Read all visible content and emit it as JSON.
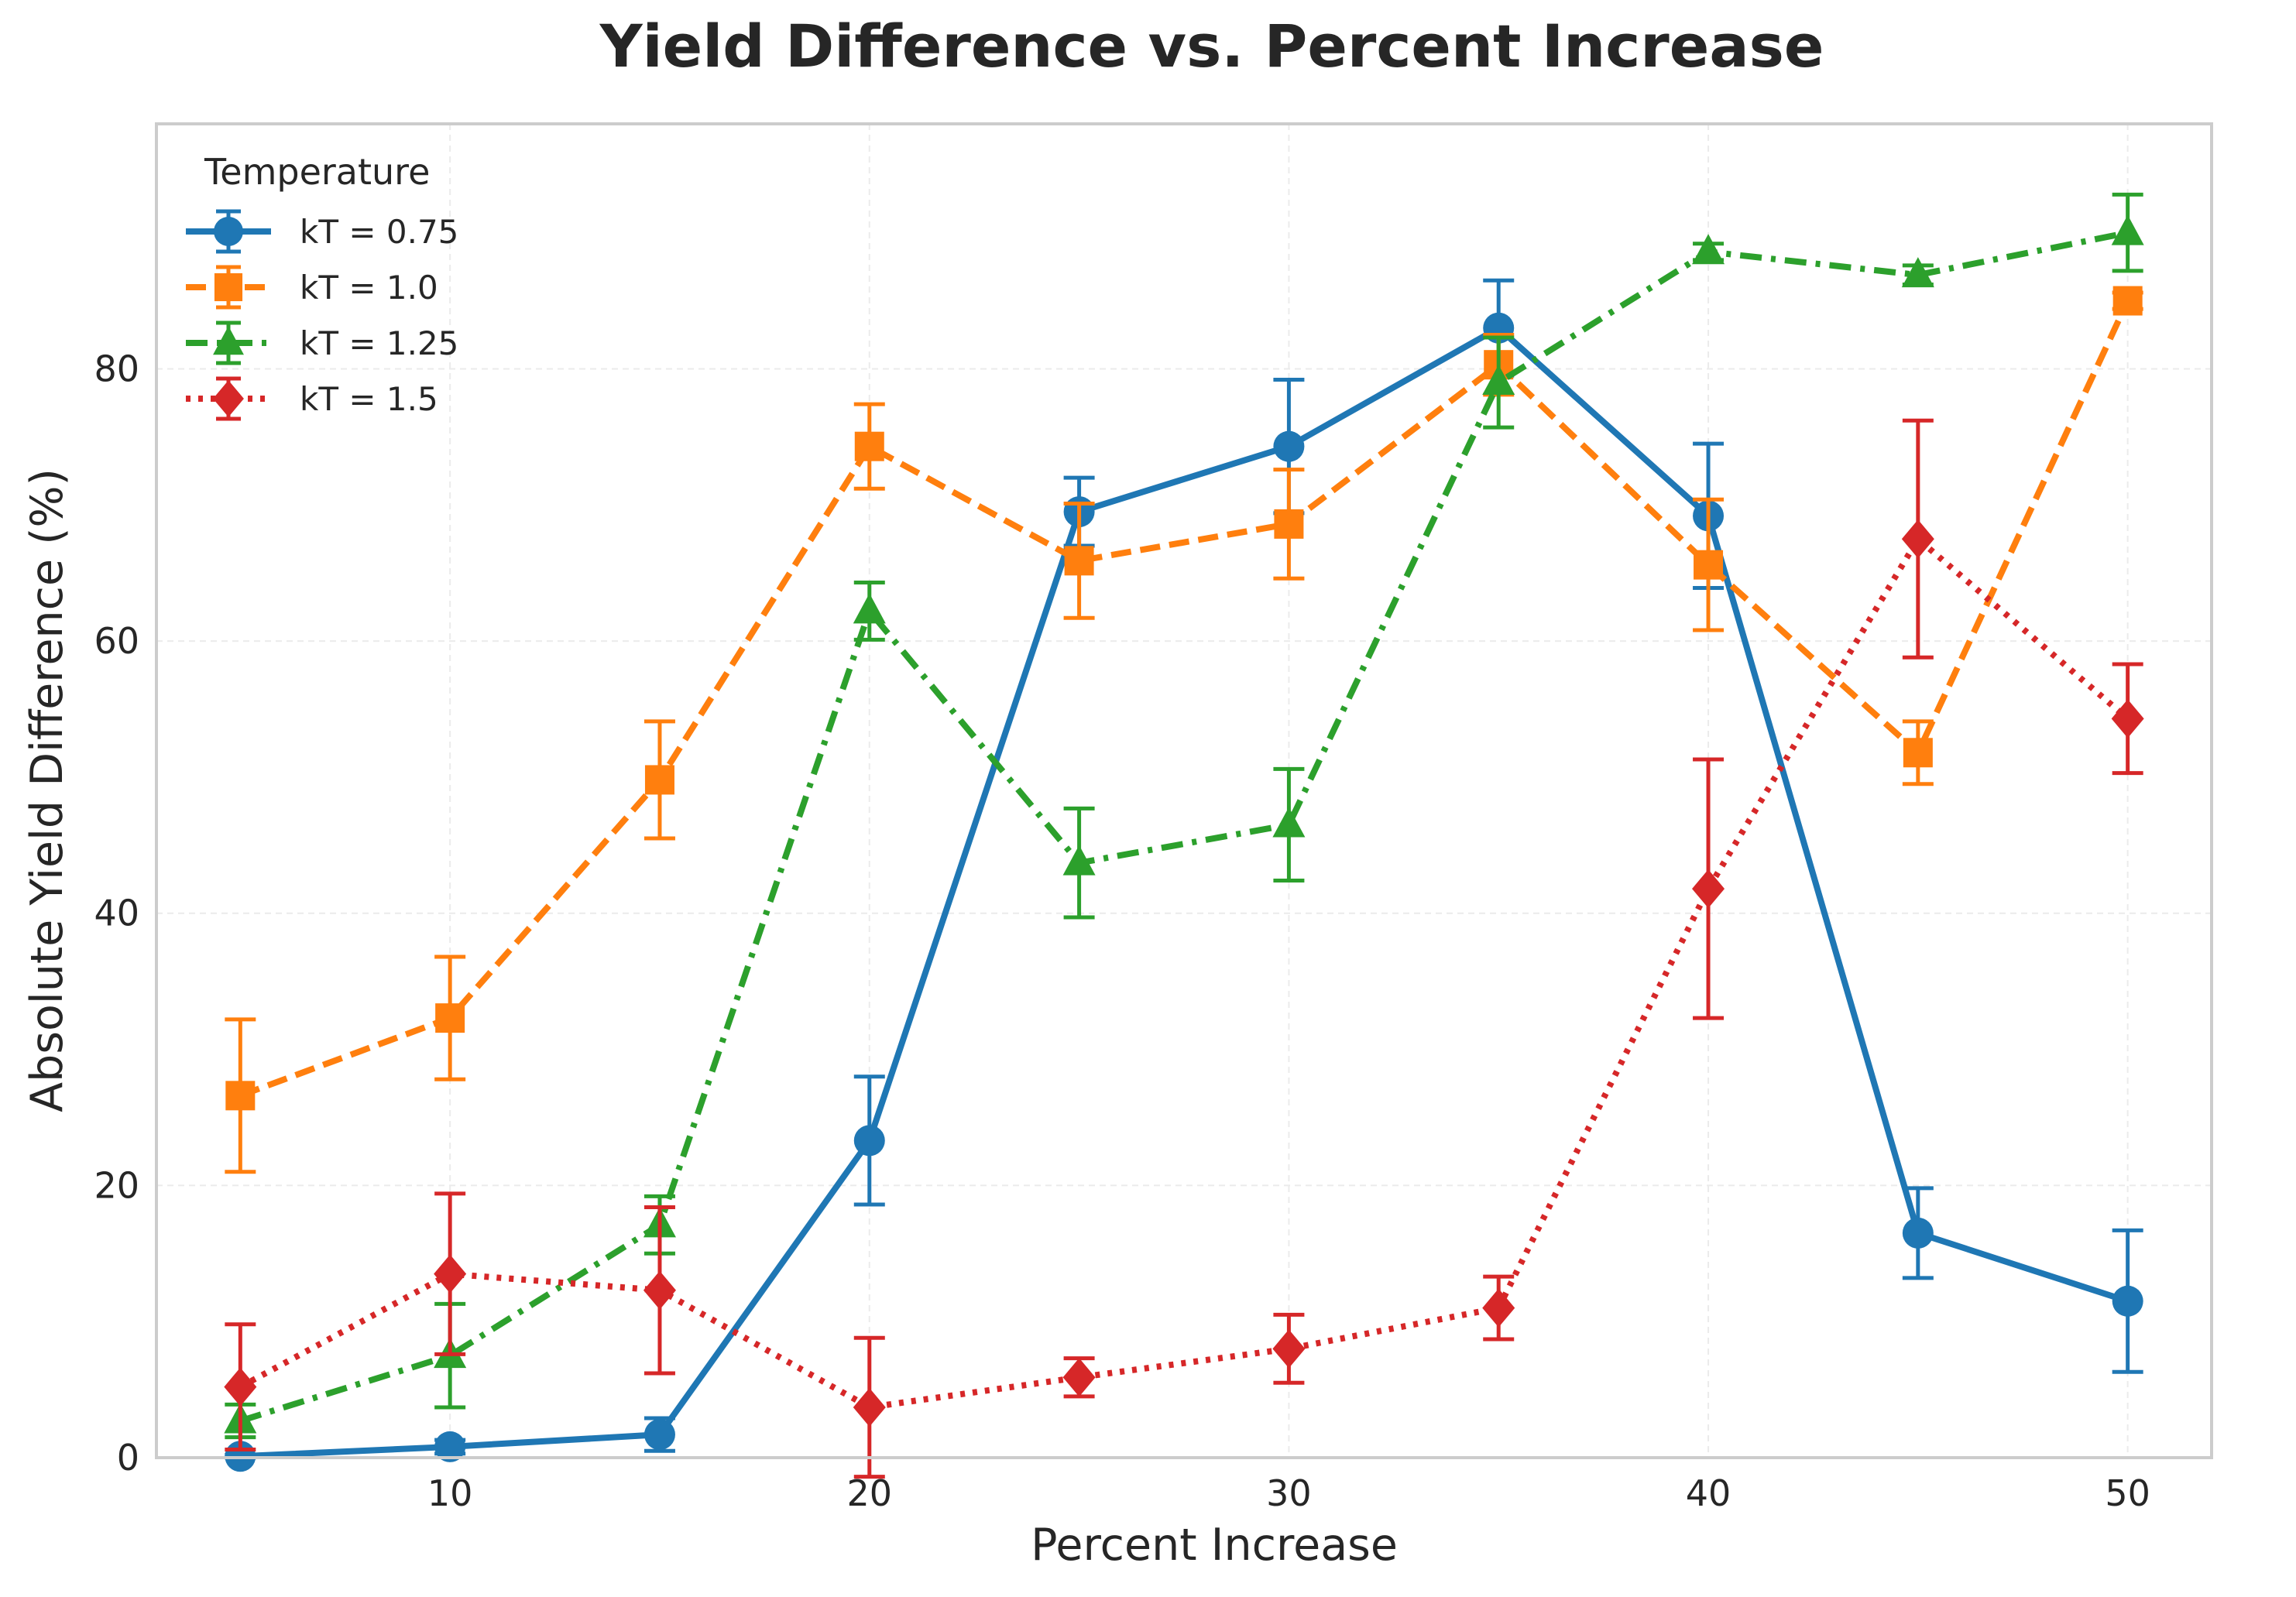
{
  "chart_data": {
    "type": "line",
    "title": "Yield Difference vs. Percent Increase",
    "xlabel": "Percent Increase",
    "ylabel": "Absolute Yield Difference (%)",
    "xlim": [
      3,
      52
    ],
    "ylim": [
      0,
      98
    ],
    "xticks": [
      10,
      20,
      30,
      40,
      50
    ],
    "yticks": [
      0,
      20,
      40,
      60,
      80
    ],
    "grid": true,
    "legend_title": "Temperature",
    "legend_position": "top-left",
    "x": [
      5,
      10,
      15,
      20,
      25,
      30,
      35,
      40,
      45,
      50
    ],
    "series": [
      {
        "name": "kT = 0.75",
        "color": "#1f77b4",
        "marker": "circle",
        "linestyle": "solid",
        "values": [
          0.1,
          0.8,
          1.7,
          23.3,
          69.5,
          74.3,
          83.0,
          69.2,
          16.5,
          11.5
        ],
        "errors": [
          0.1,
          0.5,
          1.2,
          4.7,
          2.5,
          4.9,
          3.5,
          5.3,
          3.3,
          5.2
        ]
      },
      {
        "name": "kT = 1.0",
        "color": "#ff7f0e",
        "marker": "square",
        "linestyle": "dashed",
        "values": [
          26.6,
          32.3,
          49.8,
          74.3,
          65.9,
          68.6,
          80.3,
          65.6,
          51.8,
          85.0
        ],
        "errors": [
          5.6,
          4.5,
          4.3,
          3.1,
          4.2,
          4.0,
          2.2,
          4.8,
          2.3,
          0.6
        ]
      },
      {
        "name": "kT = 1.25",
        "color": "#2ca02c",
        "marker": "triangle",
        "linestyle": "dashdot",
        "values": [
          2.7,
          7.5,
          17.1,
          62.2,
          43.7,
          46.5,
          79.0,
          88.6,
          86.9,
          90.0
        ],
        "errors": [
          1.2,
          3.8,
          2.1,
          2.1,
          4.0,
          4.1,
          3.3,
          0.6,
          0.7,
          2.8
        ]
      },
      {
        "name": "kT = 1.5",
        "color": "#d62728",
        "marker": "diamond",
        "linestyle": "dotted",
        "values": [
          5.2,
          13.5,
          12.3,
          3.7,
          5.9,
          8.0,
          11.0,
          41.8,
          67.5,
          54.3
        ],
        "errors": [
          4.6,
          5.9,
          6.1,
          5.1,
          1.4,
          2.5,
          2.3,
          9.5,
          8.7,
          4.0
        ]
      }
    ]
  }
}
